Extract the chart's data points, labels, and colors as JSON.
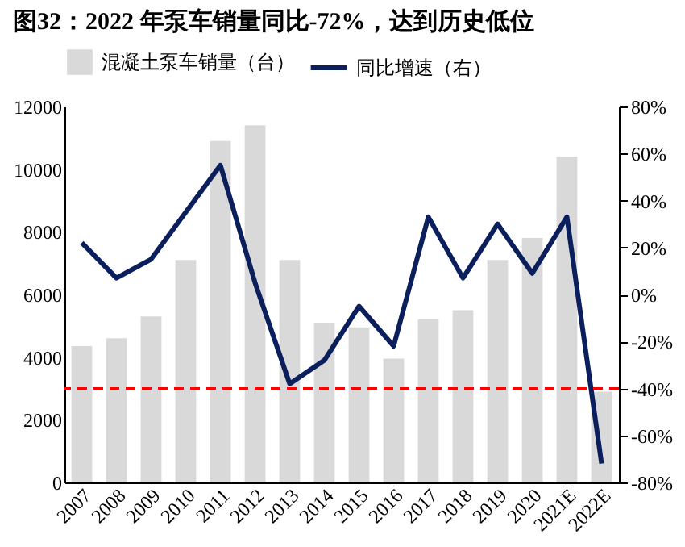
{
  "chart_data": {
    "type": "bar",
    "title": "图32：2022 年泵车销量同比-72%，达到历史低位",
    "categories": [
      "2007",
      "2008",
      "2009",
      "2010",
      "2011",
      "2012",
      "2013",
      "2014",
      "2015",
      "2016",
      "2017",
      "2018",
      "2019",
      "2020",
      "2021E",
      "2022E"
    ],
    "series": [
      {
        "name": "混凝土泵车销量（台）",
        "color": "#d9d9d9",
        "values": [
          4350,
          4600,
          5300,
          7100,
          10900,
          11400,
          7100,
          5100,
          4950,
          3950,
          5200,
          5500,
          7100,
          7800,
          10400,
          2900
        ]
      },
      {
        "name": "同比增速（右）",
        "type": "line",
        "axis": "y2",
        "color": "#0a1f5c",
        "values": [
          22,
          7,
          15,
          35,
          55,
          5,
          -38,
          -28,
          -5,
          -22,
          33,
          7,
          30,
          9,
          33,
          -72
        ]
      }
    ],
    "ylim": [
      0,
      12000
    ],
    "yticks": [
      0,
      2000,
      4000,
      6000,
      8000,
      10000,
      12000
    ],
    "y2lim": [
      -80,
      80
    ],
    "y2ticks": [
      {
        "value": -80,
        "label": "-80%"
      },
      {
        "value": -60,
        "label": "-60%"
      },
      {
        "value": -40,
        "label": "-40%"
      },
      {
        "value": -20,
        "label": "-20%"
      },
      {
        "value": 0,
        "label": "0%"
      },
      {
        "value": 20,
        "label": "20%"
      },
      {
        "value": 40,
        "label": "40%"
      },
      {
        "value": 60,
        "label": "60%"
      },
      {
        "value": 80,
        "label": "80%"
      }
    ],
    "ref_lines": [
      {
        "axis": "y2",
        "value": -40,
        "color": "#ff0000",
        "line_style": "dashed"
      }
    ],
    "legend": "top",
    "grid": false,
    "marker": "none",
    "line_style": "solid"
  }
}
